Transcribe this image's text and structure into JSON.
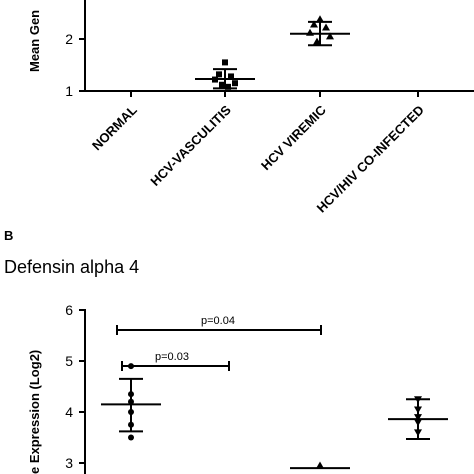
{
  "chart_data": [
    {
      "type": "scatter",
      "panel_label": "",
      "title": "",
      "ylabel": "Mean Gen",
      "yticks": [
        "1",
        "2"
      ],
      "categories": [
        "NORMAL",
        "HCV-VASCULITIS",
        "HCV VIREMIC",
        "HCV/HIV CO-INFECTED"
      ],
      "groups": [
        {
          "category": "HCV-VASCULITIS",
          "marker": "square",
          "points": [
            1.55,
            1.32,
            1.28,
            1.22,
            1.15,
            1.12,
            1.08
          ],
          "mean": 1.23,
          "sd_low": 1.05,
          "sd_high": 1.42
        },
        {
          "category": "HCV VIREMIC",
          "marker": "triangle-up",
          "points": [
            2.38,
            2.28,
            2.22,
            2.12,
            2.05,
            1.95
          ],
          "mean": 2.1,
          "sd_low": 1.88,
          "sd_high": 2.33
        }
      ]
    },
    {
      "type": "scatter",
      "panel_label": "B",
      "title": "Defensin alpha 4",
      "ylabel": "e Expression (Log2)",
      "yticks": [
        "3",
        "4",
        "5",
        "6"
      ],
      "annotations": [
        {
          "text": "p=0.04",
          "from": "NORMAL",
          "to": "HCV VIREMIC",
          "level": 5.6
        },
        {
          "text": "p=0.03",
          "from": "NORMAL",
          "to": "HCV-VASCULITIS",
          "level": 4.92
        }
      ],
      "groups": [
        {
          "category": "NORMAL",
          "marker": "circle",
          "points": [
            4.9,
            4.35,
            4.2,
            4.0,
            3.75,
            3.5
          ],
          "mean": 4.15,
          "sd_low": 3.62,
          "sd_high": 4.65
        },
        {
          "category": "HCV VIREMIC",
          "marker": "triangle-up",
          "points": [
            2.95
          ],
          "mean": 2.9,
          "sd_low": null,
          "sd_high": null
        },
        {
          "category": "HCV/HIV CO-INFECTED",
          "marker": "triangle-down",
          "points": [
            4.25,
            4.05,
            3.9,
            3.8,
            3.6
          ],
          "mean": 3.86,
          "sd_low": 3.47,
          "sd_high": 4.25
        }
      ]
    }
  ]
}
